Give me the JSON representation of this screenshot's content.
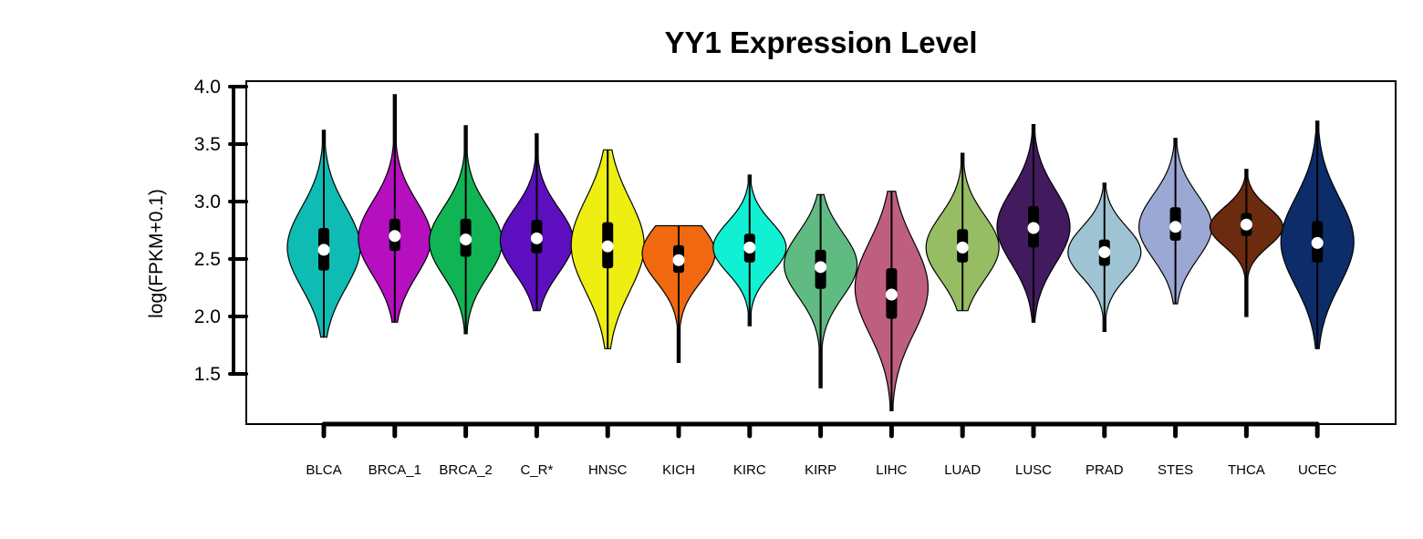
{
  "chart_data": {
    "type": "violin",
    "title": "YY1 Expression Level",
    "xlabel": "",
    "ylabel": "log(FPKM+0.1)",
    "ylim": [
      1.07,
      4.05
    ],
    "yticks": [
      1.5,
      2.0,
      2.5,
      3.0,
      3.5,
      4.0
    ],
    "ytick_labels": [
      "1.5",
      "2.0",
      "2.5",
      "3.0",
      "3.5",
      "4.0"
    ],
    "grid": false,
    "legend": "none",
    "categories": [
      "BLCA",
      "BRCA_1",
      "BRCA_2",
      "C_R*",
      "HNSC",
      "KICH",
      "KIRC",
      "KIRP",
      "LIHC",
      "LUAD",
      "LUSC",
      "PRAD",
      "STES",
      "THCA",
      "UCEC"
    ],
    "series": [
      {
        "category": "BLCA",
        "color": "#0fbcb4",
        "min": 1.82,
        "max": 3.62,
        "q1": 2.4,
        "median": 2.58,
        "q3": 2.77,
        "mode": 2.6,
        "spread": 0.35
      },
      {
        "category": "BRCA_1",
        "color": "#b50fbf",
        "min": 1.95,
        "max": 3.93,
        "q1": 2.57,
        "median": 2.7,
        "q3": 2.85,
        "mode": 2.68,
        "spread": 0.32
      },
      {
        "category": "BRCA_2",
        "color": "#10b454",
        "min": 1.85,
        "max": 3.66,
        "q1": 2.52,
        "median": 2.67,
        "q3": 2.85,
        "mode": 2.65,
        "spread": 0.3
      },
      {
        "category": "C_R*",
        "color": "#5d0fbf",
        "min": 2.05,
        "max": 3.59,
        "q1": 2.55,
        "median": 2.68,
        "q3": 2.84,
        "mode": 2.66,
        "spread": 0.28
      },
      {
        "category": "HNSC",
        "color": "#eeee12",
        "min": 1.72,
        "max": 3.45,
        "q1": 2.42,
        "median": 2.61,
        "q3": 2.82,
        "mode": 2.62,
        "spread": 0.4
      },
      {
        "category": "KICH",
        "color": "#f06810",
        "min": 1.6,
        "max": 2.79,
        "q1": 2.38,
        "median": 2.49,
        "q3": 2.62,
        "mode": 2.55,
        "spread": 0.25
      },
      {
        "category": "KIRC",
        "color": "#10f0d2",
        "min": 1.92,
        "max": 3.23,
        "q1": 2.47,
        "median": 2.6,
        "q3": 2.72,
        "mode": 2.6,
        "spread": 0.22
      },
      {
        "category": "KIRP",
        "color": "#60bb82",
        "min": 1.38,
        "max": 3.06,
        "q1": 2.24,
        "median": 2.43,
        "q3": 2.58,
        "mode": 2.45,
        "spread": 0.28
      },
      {
        "category": "LIHC",
        "color": "#bf5f7f",
        "min": 1.18,
        "max": 3.09,
        "q1": 1.98,
        "median": 2.19,
        "q3": 2.42,
        "mode": 2.25,
        "spread": 0.4
      },
      {
        "category": "LUAD",
        "color": "#96bd64",
        "min": 2.05,
        "max": 3.42,
        "q1": 2.47,
        "median": 2.6,
        "q3": 2.76,
        "mode": 2.6,
        "spread": 0.28
      },
      {
        "category": "LUSC",
        "color": "#411b5e",
        "min": 1.95,
        "max": 3.67,
        "q1": 2.6,
        "median": 2.77,
        "q3": 2.96,
        "mode": 2.78,
        "spread": 0.32
      },
      {
        "category": "PRAD",
        "color": "#9ec4d4",
        "min": 1.87,
        "max": 3.16,
        "q1": 2.44,
        "median": 2.56,
        "q3": 2.67,
        "mode": 2.56,
        "spread": 0.22
      },
      {
        "category": "STES",
        "color": "#9ba8d4",
        "min": 2.11,
        "max": 3.55,
        "q1": 2.66,
        "median": 2.78,
        "q3": 2.95,
        "mode": 2.78,
        "spread": 0.28
      },
      {
        "category": "THCA",
        "color": "#6a2b0e",
        "min": 2.0,
        "max": 3.28,
        "q1": 2.7,
        "median": 2.8,
        "q3": 2.9,
        "mode": 2.78,
        "spread": 0.17
      },
      {
        "category": "UCEC",
        "color": "#0c2c6a",
        "min": 1.72,
        "max": 3.7,
        "q1": 2.47,
        "median": 2.64,
        "q3": 2.83,
        "mode": 2.65,
        "spread": 0.38
      }
    ]
  }
}
